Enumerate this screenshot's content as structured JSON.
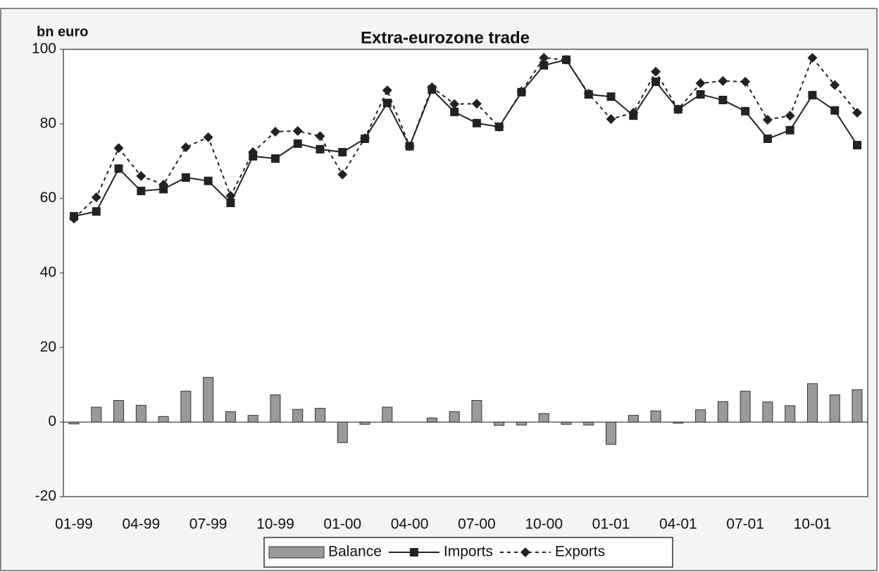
{
  "chart_data": {
    "type": "line",
    "title": "Extra-eurozone trade",
    "y_label": "bn euro",
    "categories": [
      "01-99",
      null,
      null,
      "04-99",
      null,
      null,
      "07-99",
      null,
      null,
      "10-99",
      null,
      null,
      "01-00",
      null,
      null,
      "04-00",
      null,
      null,
      "07-00",
      null,
      null,
      "10-00",
      null,
      null,
      "01-01",
      null,
      null,
      "04-01",
      null,
      null,
      "07-01",
      null,
      null,
      "10-01",
      null,
      null
    ],
    "series": [
      {
        "name": "Balance",
        "type": "bar",
        "color": "#9a9a9a",
        "values": [
          -0.5,
          4,
          5.8,
          4.5,
          1.5,
          8.3,
          12,
          2.8,
          1.8,
          7.3,
          3.4,
          3.7,
          -5.5,
          -0.6,
          4,
          0,
          1.1,
          2.8,
          5.8,
          -0.9,
          -0.8,
          2.3,
          -0.6,
          -0.8,
          -6,
          1.8,
          3,
          -0.3,
          3.3,
          5.5,
          8.3,
          5.4,
          4.4,
          10.3,
          7.3,
          8.7
        ]
      },
      {
        "name": "Imports",
        "type": "line",
        "color": "#222222",
        "dashed": false,
        "marker": "square",
        "values": [
          55.2,
          56.5,
          68,
          62,
          62.5,
          65.6,
          64.7,
          58.8,
          71.3,
          70.7,
          74.7,
          73.2,
          72.4,
          76,
          85.6,
          74,
          89.2,
          83.2,
          80.2,
          79.2,
          88.5,
          95.7,
          97.2,
          87.9,
          87.3,
          82.2,
          91.3,
          83.9,
          87.9,
          86.4,
          83.4,
          76,
          78.3,
          87.7,
          83.6,
          74.3
        ]
      },
      {
        "name": "Exports",
        "type": "line",
        "color": "#222222",
        "dashed": true,
        "marker": "diamond",
        "values": [
          54.6,
          60.3,
          73.5,
          66,
          63.7,
          73.7,
          76.4,
          60.7,
          72.4,
          77.9,
          78.1,
          76.7,
          66.4,
          76.2,
          89,
          74,
          89.8,
          85.3,
          85.4,
          79.2,
          88.7,
          97.7,
          97.2,
          88.1,
          81.3,
          83,
          94,
          83.9,
          90.9,
          91.5,
          91.3,
          81.1,
          82.2,
          97.7,
          90.4,
          83
        ]
      }
    ],
    "ylim": [
      -20,
      100
    ],
    "yticks": [
      -20,
      0,
      20,
      40,
      60,
      80,
      100
    ],
    "legend": "bottom"
  }
}
